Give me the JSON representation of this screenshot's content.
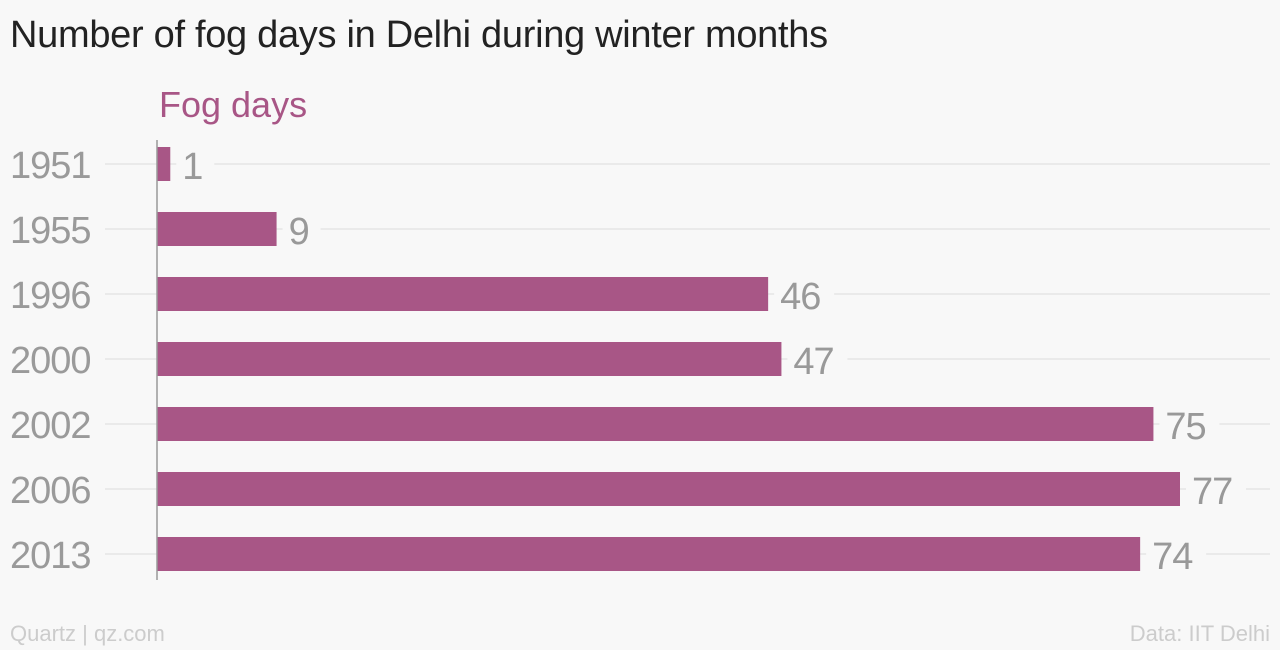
{
  "title": "Number of fog days in Delhi during winter months",
  "footer": {
    "credit": "Quartz | qz.com",
    "source": "Data: IIT Delhi"
  },
  "colors": {
    "bar": "#a85686",
    "series_label": "#a85686",
    "tick_label": "#9a9a9a",
    "value_label": "#999999",
    "gridline": "#e6e6e6",
    "axis_line": "#999999"
  },
  "chart_data": {
    "type": "bar",
    "orientation": "horizontal",
    "categories": [
      "1951",
      "1955",
      "1996",
      "2000",
      "2002",
      "2006",
      "2013"
    ],
    "series": [
      {
        "name": "Fog days",
        "values": [
          1,
          9,
          46,
          47,
          75,
          77,
          74
        ]
      }
    ],
    "title": "Number of fog days in Delhi during winter months",
    "xlabel": "",
    "ylabel": "",
    "xlim": [
      0,
      77
    ],
    "grid": true,
    "legend": "top-left"
  }
}
